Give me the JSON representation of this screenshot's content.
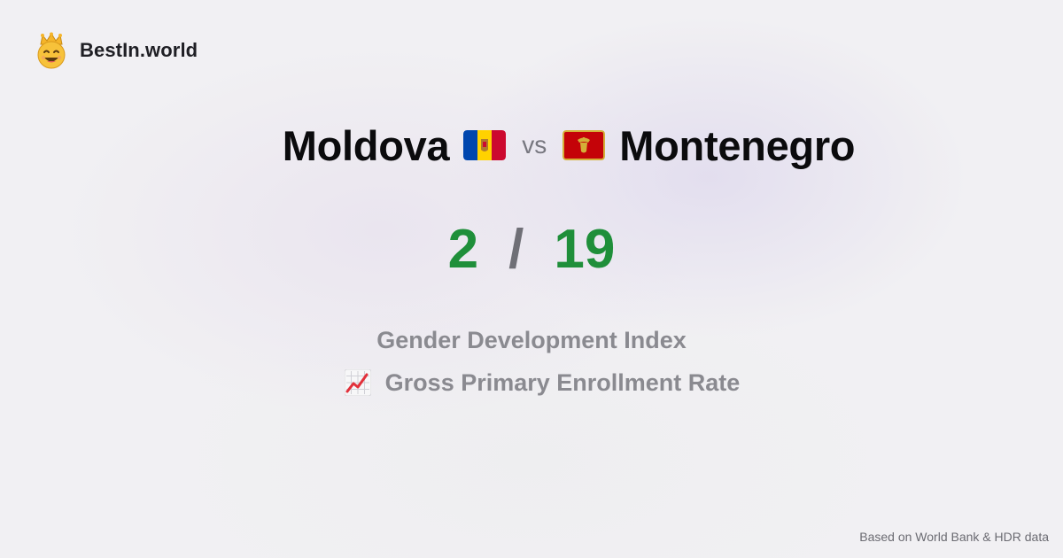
{
  "brand": {
    "name": "BestIn.world",
    "logo_icon": "crown-smiley-icon"
  },
  "comparison": {
    "left_country": "Moldova",
    "left_flag_icon": "moldova-flag-icon",
    "vs_label": "vs",
    "right_country": "Montenegro",
    "right_flag_icon": "montenegro-flag-icon"
  },
  "scores": {
    "left": "2",
    "separator": "/",
    "right": "19"
  },
  "metrics": [
    {
      "label": "Gender Development Index"
    },
    {
      "label": "Gross Primary Enrollment Rate",
      "icon": "chart-increasing-icon"
    }
  ],
  "footer": {
    "source": "Based on World Bank & HDR data"
  },
  "colors": {
    "score": "#1f8f3a",
    "muted": "#8a8a90",
    "title": "#0b0b0d"
  }
}
